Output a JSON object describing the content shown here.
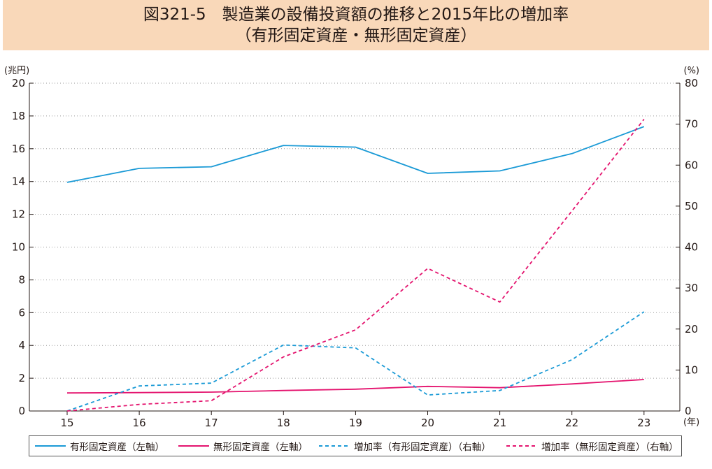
{
  "title": {
    "line1": "図321-5　製造業の設備投資額の推移と2015年比の増加率",
    "line2": "（有形固定資産・無形固定資産）"
  },
  "chart_data": {
    "type": "line",
    "categories": [
      "15",
      "16",
      "17",
      "18",
      "19",
      "20",
      "21",
      "22",
      "23"
    ],
    "x_unit": "(年)",
    "y_left": {
      "unit": "(兆円)",
      "ylim": [
        0,
        20
      ],
      "ticks": [
        "0",
        "2",
        "4",
        "6",
        "8",
        "10",
        "12",
        "14",
        "16",
        "18",
        "20"
      ]
    },
    "y_right": {
      "unit": "(%)",
      "ylim": [
        0,
        80
      ],
      "ticks": [
        "0",
        "10",
        "20",
        "30",
        "40",
        "50",
        "60",
        "70",
        "80"
      ]
    },
    "grid": "horizontal dotted",
    "legend_position": "bottom",
    "series": [
      {
        "name": "有形固定資産（左軸）",
        "axis": "left",
        "color": "#1a9ad6",
        "dash": "solid",
        "values": [
          13.95,
          14.8,
          14.9,
          16.2,
          16.1,
          14.5,
          14.65,
          15.7,
          17.35
        ]
      },
      {
        "name": "無形固定資産（左軸）",
        "axis": "left",
        "color": "#e4136e",
        "dash": "solid",
        "values": [
          1.1,
          1.12,
          1.15,
          1.25,
          1.33,
          1.5,
          1.42,
          1.65,
          1.92
        ]
      },
      {
        "name": "増加率（有形固定資産）（右軸）",
        "axis": "right",
        "color": "#1a9ad6",
        "dash": "dashed",
        "values": [
          0,
          6.1,
          6.8,
          16.1,
          15.4,
          3.9,
          5.0,
          12.5,
          24.2
        ]
      },
      {
        "name": "増加率（無形固定資産）（右軸）",
        "axis": "right",
        "color": "#e4136e",
        "dash": "dashed",
        "values": [
          0,
          1.6,
          2.5,
          13.2,
          19.8,
          34.8,
          26.6,
          48.8,
          71.2
        ]
      }
    ]
  }
}
